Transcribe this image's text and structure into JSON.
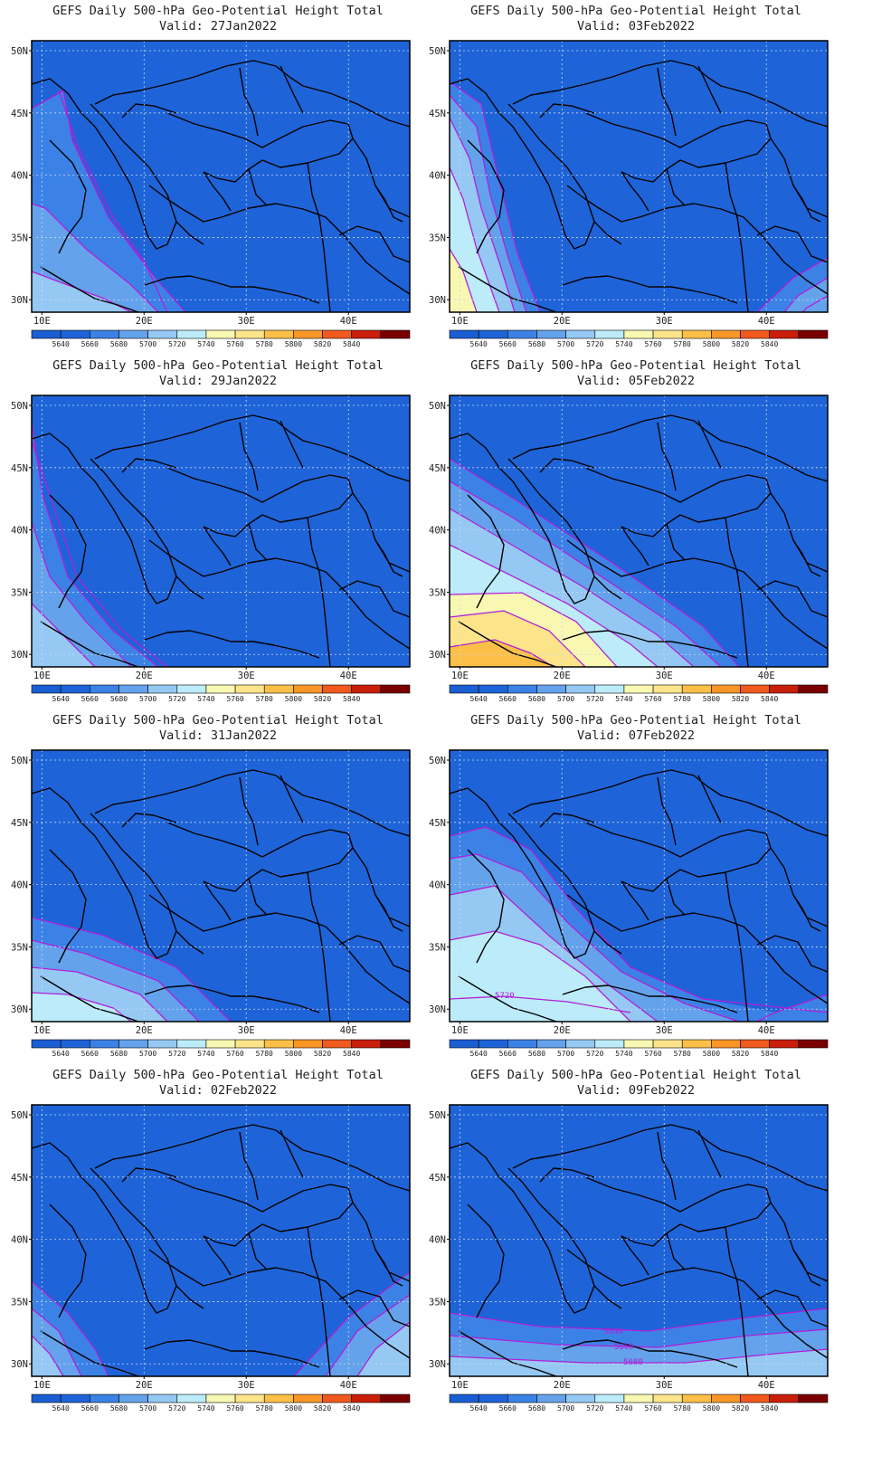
{
  "title_line1": "GEFS Daily 500-hPa Geo-Potential Height Total",
  "valid_prefix": "Valid:",
  "lon_labels": [
    "10E",
    "20E",
    "30E",
    "40E"
  ],
  "lat_labels": [
    "50N",
    "45N",
    "40N",
    "35N",
    "30N"
  ],
  "colorbar": {
    "labels": [
      "5640",
      "5660",
      "5680",
      "5700",
      "5720",
      "5740",
      "5760",
      "5780",
      "5800",
      "5820",
      "5840"
    ],
    "colors": [
      "#1a5ed4",
      "#1e64d8",
      "#3c82e6",
      "#64a2ec",
      "#96c8f4",
      "#bcecfa",
      "#f8f8b2",
      "#fce48a",
      "#fcc048",
      "#f89628",
      "#f05a1e",
      "#c81e0a",
      "#7a0000"
    ]
  },
  "panels": [
    {
      "valid": "27Jan2022"
    },
    {
      "valid": "03Feb2022"
    },
    {
      "valid": "29Jan2022"
    },
    {
      "valid": "05Feb2022"
    },
    {
      "valid": "31Jan2022"
    },
    {
      "valid": "07Feb2022",
      "contour_labels": [
        "5720"
      ]
    },
    {
      "valid": "02Feb2022"
    },
    {
      "valid": "09Feb2022",
      "contour_labels": [
        "5640",
        "5660",
        "5680"
      ]
    }
  ]
}
